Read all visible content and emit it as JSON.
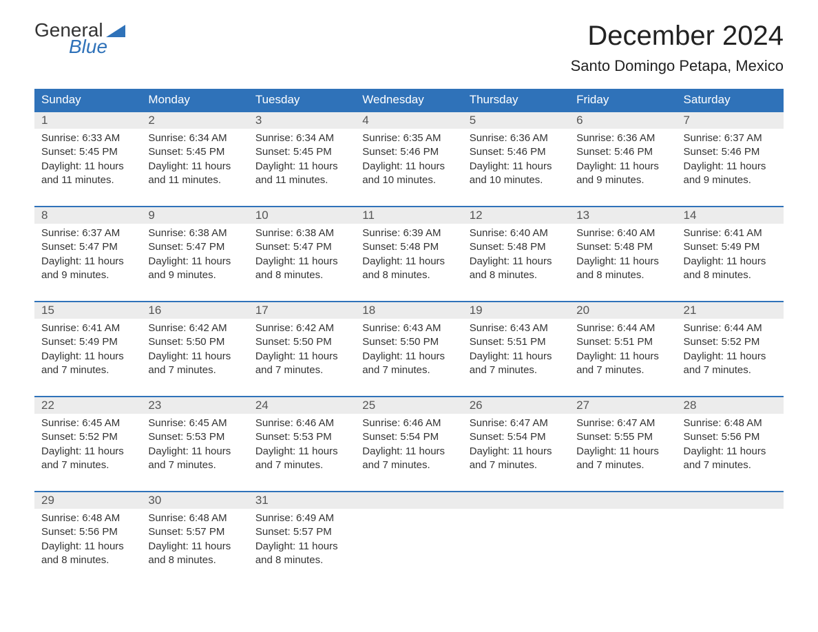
{
  "logo": {
    "line1": "General",
    "line2": "Blue"
  },
  "title": "December 2024",
  "location": "Santo Domingo Petapa, Mexico",
  "brand_color": "#2f72b9",
  "header_bg": "#2f72b9",
  "daynum_bg": "#ececec",
  "text_color": "#333333",
  "weekdays": [
    "Sunday",
    "Monday",
    "Tuesday",
    "Wednesday",
    "Thursday",
    "Friday",
    "Saturday"
  ],
  "weeks": [
    [
      {
        "day": 1,
        "sunrise": "6:33 AM",
        "sunset": "5:45 PM",
        "daylight": "11 hours and 11 minutes."
      },
      {
        "day": 2,
        "sunrise": "6:34 AM",
        "sunset": "5:45 PM",
        "daylight": "11 hours and 11 minutes."
      },
      {
        "day": 3,
        "sunrise": "6:34 AM",
        "sunset": "5:45 PM",
        "daylight": "11 hours and 11 minutes."
      },
      {
        "day": 4,
        "sunrise": "6:35 AM",
        "sunset": "5:46 PM",
        "daylight": "11 hours and 10 minutes."
      },
      {
        "day": 5,
        "sunrise": "6:36 AM",
        "sunset": "5:46 PM",
        "daylight": "11 hours and 10 minutes."
      },
      {
        "day": 6,
        "sunrise": "6:36 AM",
        "sunset": "5:46 PM",
        "daylight": "11 hours and 9 minutes."
      },
      {
        "day": 7,
        "sunrise": "6:37 AM",
        "sunset": "5:46 PM",
        "daylight": "11 hours and 9 minutes."
      }
    ],
    [
      {
        "day": 8,
        "sunrise": "6:37 AM",
        "sunset": "5:47 PM",
        "daylight": "11 hours and 9 minutes."
      },
      {
        "day": 9,
        "sunrise": "6:38 AM",
        "sunset": "5:47 PM",
        "daylight": "11 hours and 9 minutes."
      },
      {
        "day": 10,
        "sunrise": "6:38 AM",
        "sunset": "5:47 PM",
        "daylight": "11 hours and 8 minutes."
      },
      {
        "day": 11,
        "sunrise": "6:39 AM",
        "sunset": "5:48 PM",
        "daylight": "11 hours and 8 minutes."
      },
      {
        "day": 12,
        "sunrise": "6:40 AM",
        "sunset": "5:48 PM",
        "daylight": "11 hours and 8 minutes."
      },
      {
        "day": 13,
        "sunrise": "6:40 AM",
        "sunset": "5:48 PM",
        "daylight": "11 hours and 8 minutes."
      },
      {
        "day": 14,
        "sunrise": "6:41 AM",
        "sunset": "5:49 PM",
        "daylight": "11 hours and 8 minutes."
      }
    ],
    [
      {
        "day": 15,
        "sunrise": "6:41 AM",
        "sunset": "5:49 PM",
        "daylight": "11 hours and 7 minutes."
      },
      {
        "day": 16,
        "sunrise": "6:42 AM",
        "sunset": "5:50 PM",
        "daylight": "11 hours and 7 minutes."
      },
      {
        "day": 17,
        "sunrise": "6:42 AM",
        "sunset": "5:50 PM",
        "daylight": "11 hours and 7 minutes."
      },
      {
        "day": 18,
        "sunrise": "6:43 AM",
        "sunset": "5:50 PM",
        "daylight": "11 hours and 7 minutes."
      },
      {
        "day": 19,
        "sunrise": "6:43 AM",
        "sunset": "5:51 PM",
        "daylight": "11 hours and 7 minutes."
      },
      {
        "day": 20,
        "sunrise": "6:44 AM",
        "sunset": "5:51 PM",
        "daylight": "11 hours and 7 minutes."
      },
      {
        "day": 21,
        "sunrise": "6:44 AM",
        "sunset": "5:52 PM",
        "daylight": "11 hours and 7 minutes."
      }
    ],
    [
      {
        "day": 22,
        "sunrise": "6:45 AM",
        "sunset": "5:52 PM",
        "daylight": "11 hours and 7 minutes."
      },
      {
        "day": 23,
        "sunrise": "6:45 AM",
        "sunset": "5:53 PM",
        "daylight": "11 hours and 7 minutes."
      },
      {
        "day": 24,
        "sunrise": "6:46 AM",
        "sunset": "5:53 PM",
        "daylight": "11 hours and 7 minutes."
      },
      {
        "day": 25,
        "sunrise": "6:46 AM",
        "sunset": "5:54 PM",
        "daylight": "11 hours and 7 minutes."
      },
      {
        "day": 26,
        "sunrise": "6:47 AM",
        "sunset": "5:54 PM",
        "daylight": "11 hours and 7 minutes."
      },
      {
        "day": 27,
        "sunrise": "6:47 AM",
        "sunset": "5:55 PM",
        "daylight": "11 hours and 7 minutes."
      },
      {
        "day": 28,
        "sunrise": "6:48 AM",
        "sunset": "5:56 PM",
        "daylight": "11 hours and 7 minutes."
      }
    ],
    [
      {
        "day": 29,
        "sunrise": "6:48 AM",
        "sunset": "5:56 PM",
        "daylight": "11 hours and 8 minutes."
      },
      {
        "day": 30,
        "sunrise": "6:48 AM",
        "sunset": "5:57 PM",
        "daylight": "11 hours and 8 minutes."
      },
      {
        "day": 31,
        "sunrise": "6:49 AM",
        "sunset": "5:57 PM",
        "daylight": "11 hours and 8 minutes."
      },
      null,
      null,
      null,
      null
    ]
  ],
  "labels": {
    "sunrise": "Sunrise:",
    "sunset": "Sunset:",
    "daylight": "Daylight:"
  }
}
